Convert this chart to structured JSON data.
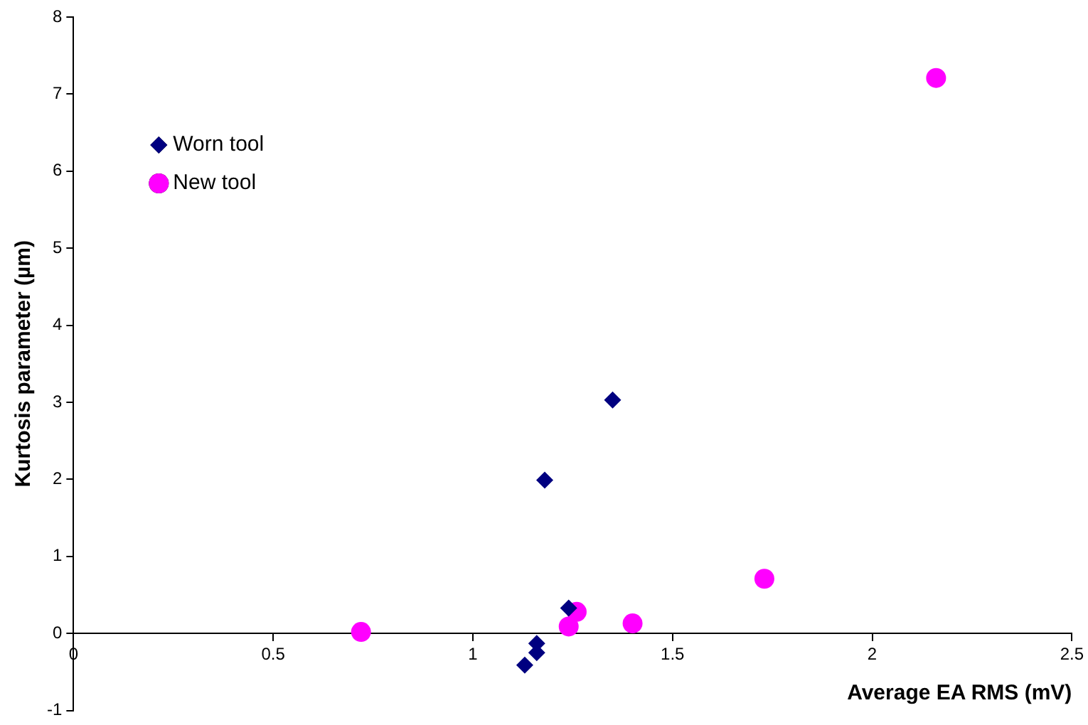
{
  "chart_data": {
    "type": "scatter",
    "xlabel": "Average EA RMS (mV)",
    "ylabel": "Kurtosis parameter (µm)",
    "xlim": [
      0,
      2.5
    ],
    "xticks": [
      0,
      0.5,
      1,
      1.5,
      2,
      2.5
    ],
    "ylim": [
      -1,
      8
    ],
    "yticks": [
      -1,
      0,
      1,
      2,
      3,
      4,
      5,
      6,
      7,
      8
    ],
    "grid": false,
    "legend": "top left",
    "series": [
      {
        "name": "Worn tool",
        "color": "#000080",
        "marker": "diamond",
        "x": [
          1.35,
          1.18,
          1.24,
          1.16,
          1.16,
          1.13
        ],
        "values": [
          3.03,
          1.99,
          0.33,
          -0.13,
          -0.25,
          -0.41
        ]
      },
      {
        "name": "New tool",
        "color": "#ff00ff",
        "marker": "circle",
        "x": [
          0.72,
          1.24,
          1.26,
          1.4,
          1.73,
          2.16
        ],
        "values": [
          0.02,
          0.09,
          0.28,
          0.13,
          0.71,
          7.21
        ]
      }
    ]
  }
}
